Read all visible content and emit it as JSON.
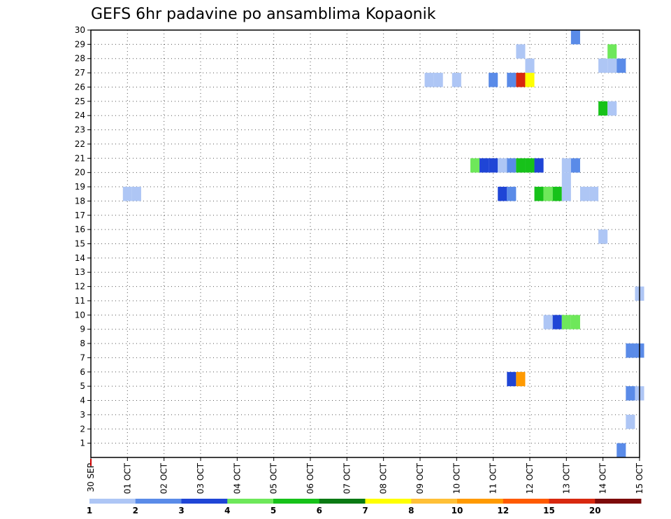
{
  "chart_data": {
    "type": "heatmap",
    "title": "GEFS 6hr padavine po ansamblima Kopaonik",
    "xlabel": "",
    "ylabel": "",
    "x_tick_labels": [
      "30 SEP",
      "01 OCT",
      "02 OCT",
      "03 OCT",
      "04 OCT",
      "05 OCT",
      "06 OCT",
      "07 OCT",
      "08 OCT",
      "09 OCT",
      "10 OCT",
      "11 OCT",
      "12 OCT",
      "13 OCT",
      "14 OCT",
      "15 OCT"
    ],
    "x_range_days": [
      0,
      15
    ],
    "y_tick_labels": [
      "1",
      "2",
      "3",
      "4",
      "5",
      "6",
      "7",
      "8",
      "9",
      "10",
      "11",
      "12",
      "13",
      "14",
      "15",
      "16",
      "17",
      "18",
      "19",
      "20",
      "21",
      "22",
      "23",
      "24",
      "25",
      "26",
      "27",
      "28",
      "29",
      "30"
    ],
    "y_range": [
      0,
      30
    ],
    "grid": true,
    "legend_placement": "bottom",
    "colorbar": {
      "labels": [
        "1",
        "2",
        "3",
        "4",
        "5",
        "6",
        "7",
        "8",
        "10",
        "12",
        "15",
        "20"
      ],
      "colors": [
        "#aec6f5",
        "#5a8be8",
        "#1f45d6",
        "#6ee85a",
        "#17c21a",
        "#0a7a14",
        "#ffff00",
        "#ffc037",
        "#ff9a00",
        "#ff5a00",
        "#d8280f",
        "#7d0a0a"
      ]
    },
    "cells": [
      {
        "x": 1.0,
        "y": 18.5,
        "c": 0
      },
      {
        "x": 1.25,
        "y": 18.5,
        "c": 0
      },
      {
        "x": 9.25,
        "y": 26.5,
        "c": 0
      },
      {
        "x": 9.5,
        "y": 26.5,
        "c": 0
      },
      {
        "x": 10.0,
        "y": 26.5,
        "c": 0
      },
      {
        "x": 11.0,
        "y": 26.5,
        "c": 1
      },
      {
        "x": 11.5,
        "y": 26.5,
        "c": 1
      },
      {
        "x": 11.75,
        "y": 26.5,
        "c": 10
      },
      {
        "x": 12.0,
        "y": 26.5,
        "c": 6
      },
      {
        "x": 11.75,
        "y": 28.5,
        "c": 0
      },
      {
        "x": 12.0,
        "y": 27.5,
        "c": 0
      },
      {
        "x": 13.25,
        "y": 29.5,
        "c": 1
      },
      {
        "x": 14.25,
        "y": 28.5,
        "c": 3
      },
      {
        "x": 14.0,
        "y": 27.5,
        "c": 0
      },
      {
        "x": 14.25,
        "y": 27.5,
        "c": 0
      },
      {
        "x": 14.5,
        "y": 27.5,
        "c": 1
      },
      {
        "x": 14.0,
        "y": 24.5,
        "c": 4
      },
      {
        "x": 14.25,
        "y": 24.5,
        "c": 0
      },
      {
        "x": 10.5,
        "y": 20.5,
        "c": 3
      },
      {
        "x": 10.75,
        "y": 20.5,
        "c": 2
      },
      {
        "x": 11.0,
        "y": 20.5,
        "c": 2
      },
      {
        "x": 11.25,
        "y": 20.5,
        "c": 0
      },
      {
        "x": 11.5,
        "y": 20.5,
        "c": 1
      },
      {
        "x": 11.75,
        "y": 20.5,
        "c": 4
      },
      {
        "x": 12.0,
        "y": 20.5,
        "c": 4
      },
      {
        "x": 12.25,
        "y": 20.5,
        "c": 2
      },
      {
        "x": 13.0,
        "y": 20.5,
        "c": 0
      },
      {
        "x": 13.25,
        "y": 20.5,
        "c": 1
      },
      {
        "x": 13.0,
        "y": 19.5,
        "c": 0
      },
      {
        "x": 11.25,
        "y": 18.5,
        "c": 2
      },
      {
        "x": 11.5,
        "y": 18.5,
        "c": 1
      },
      {
        "x": 12.25,
        "y": 18.5,
        "c": 4
      },
      {
        "x": 12.5,
        "y": 18.5,
        "c": 3
      },
      {
        "x": 12.75,
        "y": 18.5,
        "c": 4
      },
      {
        "x": 13.0,
        "y": 18.5,
        "c": 0
      },
      {
        "x": 13.5,
        "y": 18.5,
        "c": 0
      },
      {
        "x": 13.75,
        "y": 18.5,
        "c": 0
      },
      {
        "x": 14.0,
        "y": 15.5,
        "c": 0
      },
      {
        "x": 15.0,
        "y": 11.5,
        "c": 0
      },
      {
        "x": 12.5,
        "y": 9.5,
        "c": 0
      },
      {
        "x": 12.75,
        "y": 9.5,
        "c": 2
      },
      {
        "x": 13.0,
        "y": 9.5,
        "c": 3
      },
      {
        "x": 13.25,
        "y": 9.5,
        "c": 3
      },
      {
        "x": 14.75,
        "y": 7.5,
        "c": 1
      },
      {
        "x": 15.0,
        "y": 7.5,
        "c": 1
      },
      {
        "x": 11.5,
        "y": 5.5,
        "c": 2
      },
      {
        "x": 11.75,
        "y": 5.5,
        "c": 8
      },
      {
        "x": 14.75,
        "y": 4.5,
        "c": 1
      },
      {
        "x": 15.0,
        "y": 4.5,
        "c": 0
      },
      {
        "x": 14.75,
        "y": 2.5,
        "c": 0
      },
      {
        "x": 14.5,
        "y": 0.5,
        "c": 1
      }
    ]
  }
}
